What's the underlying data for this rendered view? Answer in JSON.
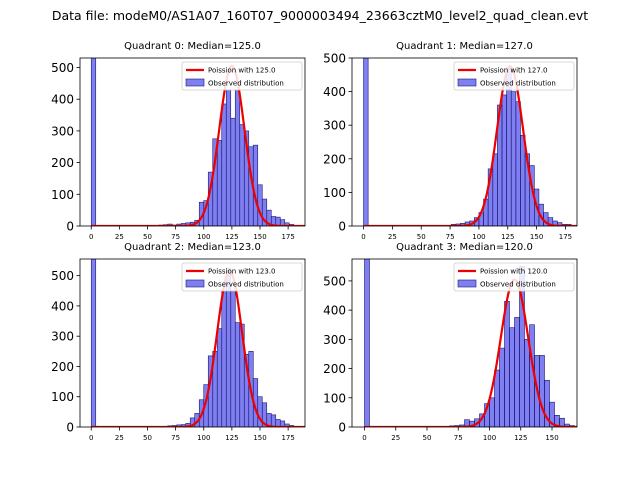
{
  "figure_title": "Data file: modeM0/AS1A07_160T07_9000003494_23663cztM0_level2_quad_clean.evt",
  "chart_data": [
    {
      "type": "bar",
      "title": "Quadrant 0: Median=125.0",
      "xlim": [
        -10,
        190
      ],
      "ylim": [
        0,
        530
      ],
      "xticks": [
        0,
        25,
        50,
        75,
        100,
        125,
        150,
        175
      ],
      "yticks": [
        0,
        100,
        200,
        300,
        400,
        500
      ],
      "bin_width": 4,
      "bins": [
        [
          0,
          530
        ],
        [
          60,
          3
        ],
        [
          64,
          4
        ],
        [
          68,
          6
        ],
        [
          72,
          3
        ],
        [
          76,
          6
        ],
        [
          80,
          8
        ],
        [
          84,
          10
        ],
        [
          88,
          12
        ],
        [
          92,
          18
        ],
        [
          96,
          75
        ],
        [
          100,
          80
        ],
        [
          104,
          170
        ],
        [
          108,
          275
        ],
        [
          112,
          270
        ],
        [
          116,
          385
        ],
        [
          120,
          430
        ],
        [
          124,
          340
        ],
        [
          128,
          430
        ],
        [
          132,
          320
        ],
        [
          136,
          300
        ],
        [
          140,
          250
        ],
        [
          144,
          255
        ],
        [
          148,
          130
        ],
        [
          152,
          85
        ],
        [
          156,
          50
        ],
        [
          160,
          30
        ],
        [
          164,
          28
        ],
        [
          168,
          20
        ],
        [
          172,
          10
        ],
        [
          176,
          5
        ]
      ],
      "fit": {
        "label": "Poission with 125.0",
        "mean": 125.0,
        "peak": 505
      },
      "legend": [
        "Poission with 125.0",
        "Observed distribution"
      ]
    },
    {
      "type": "bar",
      "title": "Quadrant 1: Median=127.0",
      "xlim": [
        -10,
        185
      ],
      "ylim": [
        0,
        500
      ],
      "xticks": [
        0,
        25,
        50,
        75,
        100,
        125,
        150,
        175
      ],
      "yticks": [
        0,
        100,
        200,
        300,
        400,
        500
      ],
      "bin_width": 4,
      "bins": [
        [
          0,
          500
        ],
        [
          76,
          5
        ],
        [
          80,
          6
        ],
        [
          84,
          8
        ],
        [
          88,
          12
        ],
        [
          92,
          15
        ],
        [
          96,
          25
        ],
        [
          100,
          40
        ],
        [
          104,
          80
        ],
        [
          108,
          170
        ],
        [
          112,
          215
        ],
        [
          116,
          360
        ],
        [
          120,
          390
        ],
        [
          124,
          470
        ],
        [
          128,
          400
        ],
        [
          132,
          370
        ],
        [
          136,
          270
        ],
        [
          140,
          215
        ],
        [
          144,
          180
        ],
        [
          148,
          110
        ],
        [
          152,
          65
        ],
        [
          156,
          40
        ],
        [
          160,
          25
        ],
        [
          164,
          15
        ],
        [
          168,
          10
        ],
        [
          172,
          5
        ],
        [
          176,
          5
        ]
      ],
      "fit": {
        "label": "Poission with 127.0",
        "mean": 127.0,
        "peak": 475
      },
      "legend": [
        "Poission with 127.0",
        "Observed distribution"
      ]
    },
    {
      "type": "bar",
      "title": "Quadrant 2: Median=123.0",
      "xlim": [
        -10,
        190
      ],
      "ylim": [
        0,
        555
      ],
      "xticks": [
        0,
        25,
        50,
        75,
        100,
        125,
        150,
        175
      ],
      "yticks": [
        0,
        100,
        200,
        300,
        400,
        500
      ],
      "bin_width": 4,
      "bins": [
        [
          0,
          555
        ],
        [
          68,
          4
        ],
        [
          72,
          5
        ],
        [
          76,
          7
        ],
        [
          80,
          8
        ],
        [
          84,
          12
        ],
        [
          88,
          30
        ],
        [
          92,
          45
        ],
        [
          96,
          90
        ],
        [
          100,
          140
        ],
        [
          104,
          235
        ],
        [
          108,
          250
        ],
        [
          112,
          325
        ],
        [
          116,
          450
        ],
        [
          120,
          525
        ],
        [
          124,
          450
        ],
        [
          128,
          345
        ],
        [
          132,
          340
        ],
        [
          136,
          240
        ],
        [
          140,
          250
        ],
        [
          144,
          160
        ],
        [
          148,
          100
        ],
        [
          152,
          80
        ],
        [
          156,
          45
        ],
        [
          160,
          40
        ],
        [
          164,
          25
        ],
        [
          168,
          20
        ],
        [
          172,
          10
        ],
        [
          176,
          5
        ]
      ],
      "fit": {
        "label": "Poission with 123.0",
        "mean": 123.0,
        "peak": 515
      },
      "legend": [
        "Poission with 123.0",
        "Observed distribution"
      ]
    },
    {
      "type": "bar",
      "title": "Quadrant 3: Median=120.0",
      "xlim": [
        -10,
        170
      ],
      "ylim": [
        0,
        575
      ],
      "xticks": [
        0,
        25,
        50,
        75,
        100,
        125,
        150
      ],
      "yticks": [
        0,
        100,
        200,
        300,
        400,
        500
      ],
      "bin_width": 4,
      "bins": [
        [
          0,
          575
        ],
        [
          68,
          4
        ],
        [
          72,
          5
        ],
        [
          76,
          7
        ],
        [
          80,
          25
        ],
        [
          84,
          20
        ],
        [
          88,
          28
        ],
        [
          92,
          45
        ],
        [
          96,
          80
        ],
        [
          100,
          100
        ],
        [
          104,
          195
        ],
        [
          108,
          270
        ],
        [
          112,
          430
        ],
        [
          116,
          340
        ],
        [
          120,
          375
        ],
        [
          124,
          550
        ],
        [
          128,
          300
        ],
        [
          132,
          350
        ],
        [
          136,
          245
        ],
        [
          140,
          245
        ],
        [
          144,
          160
        ],
        [
          148,
          85
        ],
        [
          152,
          40
        ],
        [
          156,
          30
        ],
        [
          160,
          10
        ],
        [
          164,
          5
        ]
      ],
      "fit": {
        "label": "Poission with 120.0",
        "mean": 120.0,
        "peak": 505
      },
      "legend": [
        "Poission with 120.0",
        "Observed distribution"
      ]
    }
  ]
}
